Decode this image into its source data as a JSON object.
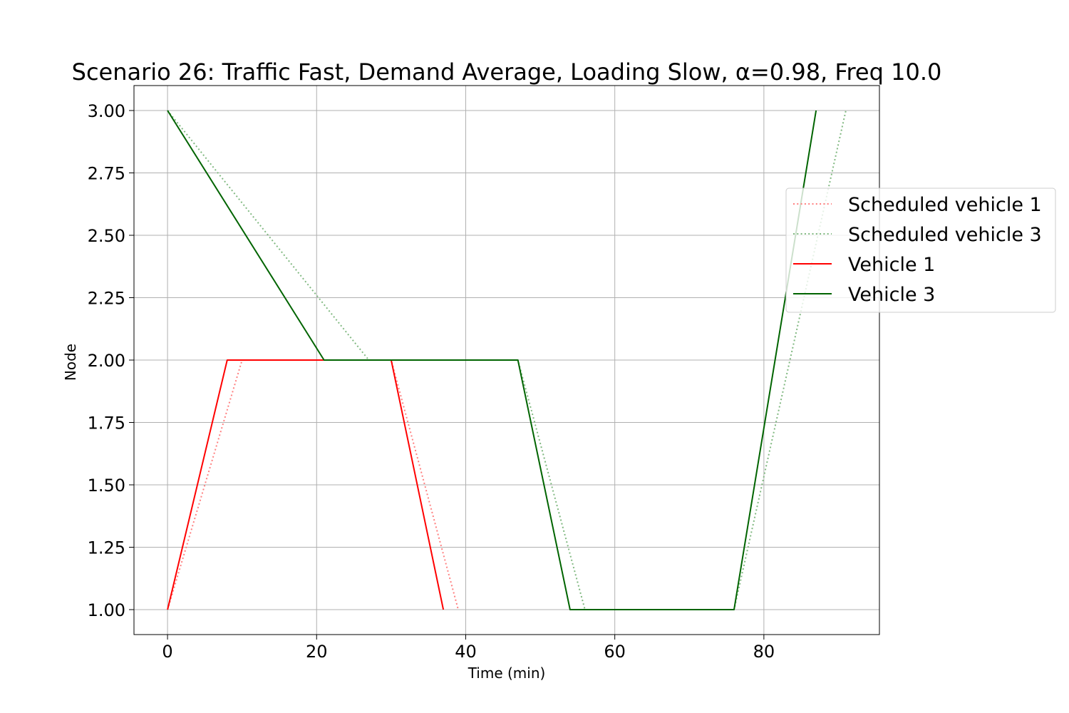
{
  "chart_data": {
    "type": "line",
    "title": "Scenario 26: Traffic Fast, Demand Average, Loading Slow, α=0.98, Freq 10.0",
    "xlabel": "Time (min)",
    "ylabel": "Node",
    "xlim": [
      -4.5,
      95.5
    ],
    "ylim": [
      0.9,
      3.1
    ],
    "xticks": [
      0,
      20,
      40,
      60,
      80
    ],
    "yticks": [
      1.0,
      1.25,
      1.5,
      1.75,
      2.0,
      2.25,
      2.5,
      2.75,
      3.0
    ],
    "xtick_labels": [
      "0",
      "20",
      "40",
      "60",
      "80"
    ],
    "ytick_labels": [
      "1.00",
      "1.25",
      "1.50",
      "1.75",
      "2.00",
      "2.25",
      "2.50",
      "2.75",
      "3.00"
    ],
    "grid": true,
    "legend_position": "right, outside plot edge",
    "series": [
      {
        "name": "Scheduled vehicle 1",
        "style": "dotted",
        "color": "#ff8080",
        "points": [
          [
            0,
            1
          ],
          [
            10,
            2
          ],
          [
            30,
            2
          ],
          [
            39,
            1
          ]
        ]
      },
      {
        "name": "Scheduled vehicle 3",
        "style": "dotted",
        "color": "#80b880",
        "points": [
          [
            0,
            3
          ],
          [
            27,
            2
          ],
          [
            47,
            2
          ],
          [
            56,
            1
          ],
          [
            76,
            1
          ],
          [
            91,
            3
          ]
        ]
      },
      {
        "name": "Vehicle 1",
        "style": "solid",
        "color": "#ff0000",
        "points": [
          [
            0,
            1
          ],
          [
            8,
            2
          ],
          [
            30,
            2
          ],
          [
            37,
            1
          ]
        ]
      },
      {
        "name": "Vehicle 3",
        "style": "solid",
        "color": "#006400",
        "points": [
          [
            0,
            3
          ],
          [
            21,
            2
          ],
          [
            47,
            2
          ],
          [
            54,
            1
          ],
          [
            76,
            1
          ],
          [
            87,
            3
          ]
        ]
      }
    ]
  }
}
